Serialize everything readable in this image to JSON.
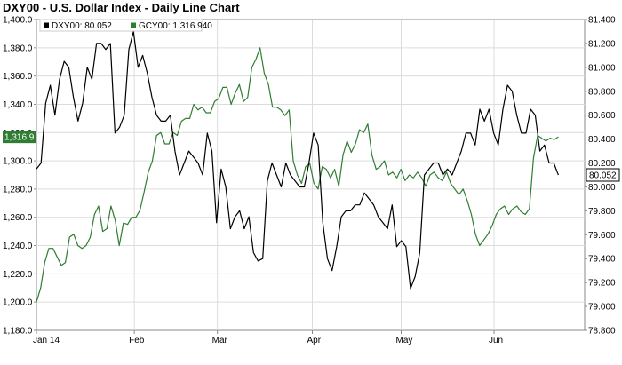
{
  "chart_data": {
    "type": "line",
    "title": "DXY00 - U.S. Dollar Index - Daily Line Chart",
    "x_labels": [
      "Jan 14",
      "Feb",
      "Mar",
      "Apr",
      "May",
      "Jun"
    ],
    "left_axis": {
      "ylim": [
        1180,
        1400
      ],
      "ticks": [
        "1,180.0",
        "1,200.0",
        "1,220.0",
        "1,240.0",
        "1,260.0",
        "1,280.0",
        "1,300.0",
        "1,320.0",
        "1,340.0",
        "1,360.0",
        "1,380.0",
        "1,400.0"
      ]
    },
    "right_axis": {
      "ylim": [
        78.8,
        81.4
      ],
      "ticks": [
        "78.800",
        "79.000",
        "79.200",
        "79.400",
        "79.600",
        "79.800",
        "80.000",
        "80.200",
        "80.400",
        "80.600",
        "80.800",
        "81.000",
        "81.200",
        "81.400"
      ]
    },
    "grid": true,
    "legend_position": "top-left",
    "series": [
      {
        "name": "DXY00: 80.052",
        "axis": "right",
        "color": "#000000",
        "last_label": "80.052",
        "values": [
          80.15,
          80.2,
          80.7,
          80.85,
          80.6,
          80.9,
          81.05,
          81.0,
          80.75,
          80.55,
          80.7,
          81.0,
          80.9,
          81.2,
          81.2,
          81.15,
          81.2,
          80.45,
          80.5,
          80.6,
          81.15,
          81.3,
          81.0,
          81.1,
          80.95,
          80.75,
          80.6,
          80.55,
          80.55,
          80.6,
          80.3,
          80.1,
          80.2,
          80.3,
          80.25,
          80.2,
          80.1,
          80.45,
          80.3,
          79.7,
          80.15,
          80.0,
          79.65,
          79.75,
          79.8,
          79.65,
          79.75,
          79.45,
          79.38,
          79.4,
          80.05,
          80.2,
          80.1,
          80.0,
          80.2,
          80.1,
          80.05,
          80.0,
          80.0,
          80.2,
          80.45,
          80.35,
          79.7,
          79.4,
          79.3,
          79.5,
          79.75,
          79.8,
          79.8,
          79.85,
          79.85,
          79.95,
          79.9,
          79.85,
          79.75,
          79.7,
          79.65,
          79.85,
          79.5,
          79.55,
          79.5,
          79.15,
          79.25,
          79.45,
          80.1,
          80.15,
          80.2,
          80.2,
          80.1,
          80.15,
          80.1,
          80.2,
          80.3,
          80.45,
          80.45,
          80.35,
          80.65,
          80.55,
          80.65,
          80.45,
          80.35,
          80.65,
          80.85,
          80.8,
          80.6,
          80.45,
          80.45,
          80.65,
          80.6,
          80.3,
          80.35,
          80.2,
          80.2,
          80.1
        ]
      },
      {
        "name": "GCY00: 1,316.940",
        "axis": "left",
        "color": "#2e7d32",
        "last_label": "1,316.9",
        "values": [
          1200,
          1210,
          1228,
          1238,
          1238,
          1232,
          1226,
          1228,
          1246,
          1248,
          1240,
          1238,
          1240,
          1246,
          1262,
          1268,
          1250,
          1252,
          1268,
          1258,
          1240,
          1256,
          1255,
          1260,
          1260,
          1265,
          1278,
          1292,
          1300,
          1318,
          1320,
          1312,
          1312,
          1320,
          1318,
          1328,
          1330,
          1330,
          1340,
          1336,
          1338,
          1334,
          1334,
          1342,
          1344,
          1352,
          1352,
          1340,
          1348,
          1354,
          1342,
          1345,
          1366,
          1372,
          1380,
          1362,
          1354,
          1338,
          1338,
          1336,
          1332,
          1336,
          1300,
          1290,
          1284,
          1296,
          1298,
          1284,
          1280,
          1296,
          1294,
          1288,
          1294,
          1282,
          1304,
          1314,
          1306,
          1312,
          1322,
          1320,
          1326,
          1304,
          1294,
          1296,
          1300,
          1290,
          1292,
          1288,
          1294,
          1286,
          1290,
          1288,
          1292,
          1288,
          1282,
          1290,
          1292,
          1288,
          1286,
          1292,
          1284,
          1280,
          1276,
          1280,
          1272,
          1262,
          1248,
          1240,
          1244,
          1248,
          1254,
          1262,
          1266,
          1268,
          1262,
          1266,
          1268,
          1264,
          1262,
          1266,
          1302,
          1318,
          1316,
          1314,
          1316,
          1315,
          1316.94
        ]
      }
    ]
  }
}
